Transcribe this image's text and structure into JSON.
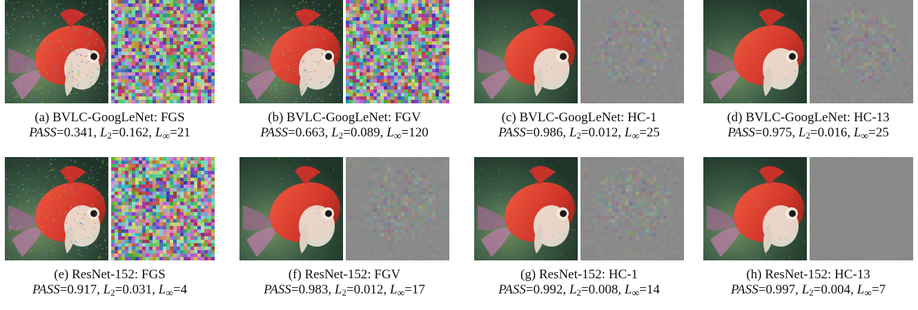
{
  "figure": {
    "panels": [
      {
        "tag": "(a)",
        "model": "BVLC-GoogLeNet",
        "method": "FGS",
        "pass": "0.341",
        "l2": "0.162",
        "linf": "21",
        "noise": "strong"
      },
      {
        "tag": "(b)",
        "model": "BVLC-GoogLeNet",
        "method": "FGV",
        "pass": "0.663",
        "l2": "0.089",
        "linf": "120",
        "noise": "strong"
      },
      {
        "tag": "(c)",
        "model": "BVLC-GoogLeNet",
        "method": "HC-1",
        "pass": "0.986",
        "l2": "0.012",
        "linf": "25",
        "noise": "faint"
      },
      {
        "tag": "(d)",
        "model": "BVLC-GoogLeNet",
        "method": "HC-13",
        "pass": "0.975",
        "l2": "0.016",
        "linf": "25",
        "noise": "faint"
      },
      {
        "tag": "(e)",
        "model": "ResNet-152",
        "method": "FGS",
        "pass": "0.917",
        "l2": "0.031",
        "linf": "4",
        "noise": "strong"
      },
      {
        "tag": "(f)",
        "model": "ResNet-152",
        "method": "FGV",
        "pass": "0.983",
        "l2": "0.012",
        "linf": "17",
        "noise": "faint"
      },
      {
        "tag": "(g)",
        "model": "ResNet-152",
        "method": "HC-1",
        "pass": "0.992",
        "l2": "0.008",
        "linf": "14",
        "noise": "faint"
      },
      {
        "tag": "(h)",
        "model": "ResNet-152",
        "method": "HC-13",
        "pass": "0.997",
        "l2": "0.004",
        "linf": "7",
        "noise": "very-faint"
      }
    ],
    "labels": {
      "pass": "PASS",
      "l2": "L",
      "l2_sub": "2",
      "linf": "L",
      "linf_sub": "∞"
    },
    "colors": {
      "fish_red": "#d2362a",
      "fish_white": "#ece3d6",
      "background_green": "#3b5a45",
      "perturbation_gray": "#8a8a8a"
    }
  }
}
